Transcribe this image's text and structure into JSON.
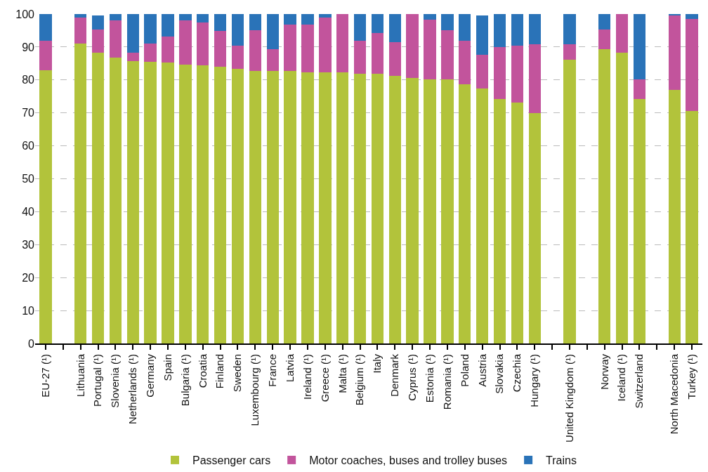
{
  "chart_data": {
    "type": "bar",
    "stacked": true,
    "categories": [
      "EU-27 (¹)",
      null,
      "Lithuania",
      "Portugal (¹)",
      "Slovenia (¹)",
      "Netherlands (¹)",
      "Germany",
      "Spain",
      "Bulgaria (¹)",
      "Croatia",
      "Finland",
      "Sweden",
      "Luxembourg (¹)",
      "France",
      "Latvia",
      "Ireland (¹)",
      "Greece (¹)",
      "Malta (¹)",
      "Belgium (¹)",
      "Italy",
      "Denmark",
      "Cyprus (¹)",
      "Estonia (¹)",
      "Romania (¹)",
      "Poland",
      "Austria",
      "Slovakia",
      "Czechia",
      "Hungary (¹)",
      null,
      "United Kingdom (¹)",
      null,
      "Norway",
      "Iceland (¹)",
      "Switzerland",
      null,
      "North Macedonia",
      "Turkey (¹)"
    ],
    "series": [
      {
        "name": "Passenger cars",
        "color": "#b2c33b",
        "values": [
          83,
          null,
          91,
          88.3,
          86.7,
          85.7,
          85.6,
          85.2,
          84.6,
          84.5,
          84,
          83.4,
          82.8,
          82.8,
          82.8,
          82.3,
          82.3,
          82.3,
          81.8,
          81.8,
          81.2,
          80.6,
          80.2,
          80.2,
          78.6,
          77.5,
          74.3,
          73.1,
          70,
          null,
          86.1,
          null,
          89.3,
          88.3,
          74.3,
          null,
          76.9,
          70.5
        ]
      },
      {
        "name": "Motor coaches, buses and trolley buses",
        "color": "#c2549c",
        "values": [
          9,
          null,
          8,
          7,
          11.3,
          2.5,
          5.4,
          7.9,
          13.4,
          12.9,
          10.8,
          7.1,
          12.4,
          6.5,
          14.1,
          14.6,
          16.7,
          17.7,
          10.1,
          12.4,
          10.2,
          19.4,
          18,
          15,
          13.3,
          10.2,
          15.6,
          17.4,
          20.9,
          null,
          4.8,
          null,
          6.1,
          11.7,
          5.9,
          null,
          22.6,
          28
        ]
      },
      {
        "name": "Trains",
        "color": "#2a73b8",
        "values": [
          8,
          null,
          1,
          4.3,
          2,
          11.8,
          9,
          6.9,
          2,
          2.6,
          5.2,
          9.5,
          4.8,
          10.7,
          3.1,
          3.1,
          1,
          0,
          8.1,
          5.8,
          8.6,
          0,
          1.8,
          4.8,
          8.1,
          11.9,
          10.1,
          9.5,
          9.1,
          null,
          9.1,
          null,
          4.6,
          0,
          19.8,
          null,
          0.5,
          1.5
        ]
      }
    ],
    "ylim": [
      0,
      100
    ],
    "yticks": [
      0,
      10,
      20,
      30,
      40,
      50,
      60,
      70,
      80,
      90,
      100
    ],
    "grid": "y",
    "legend": "bottom"
  }
}
